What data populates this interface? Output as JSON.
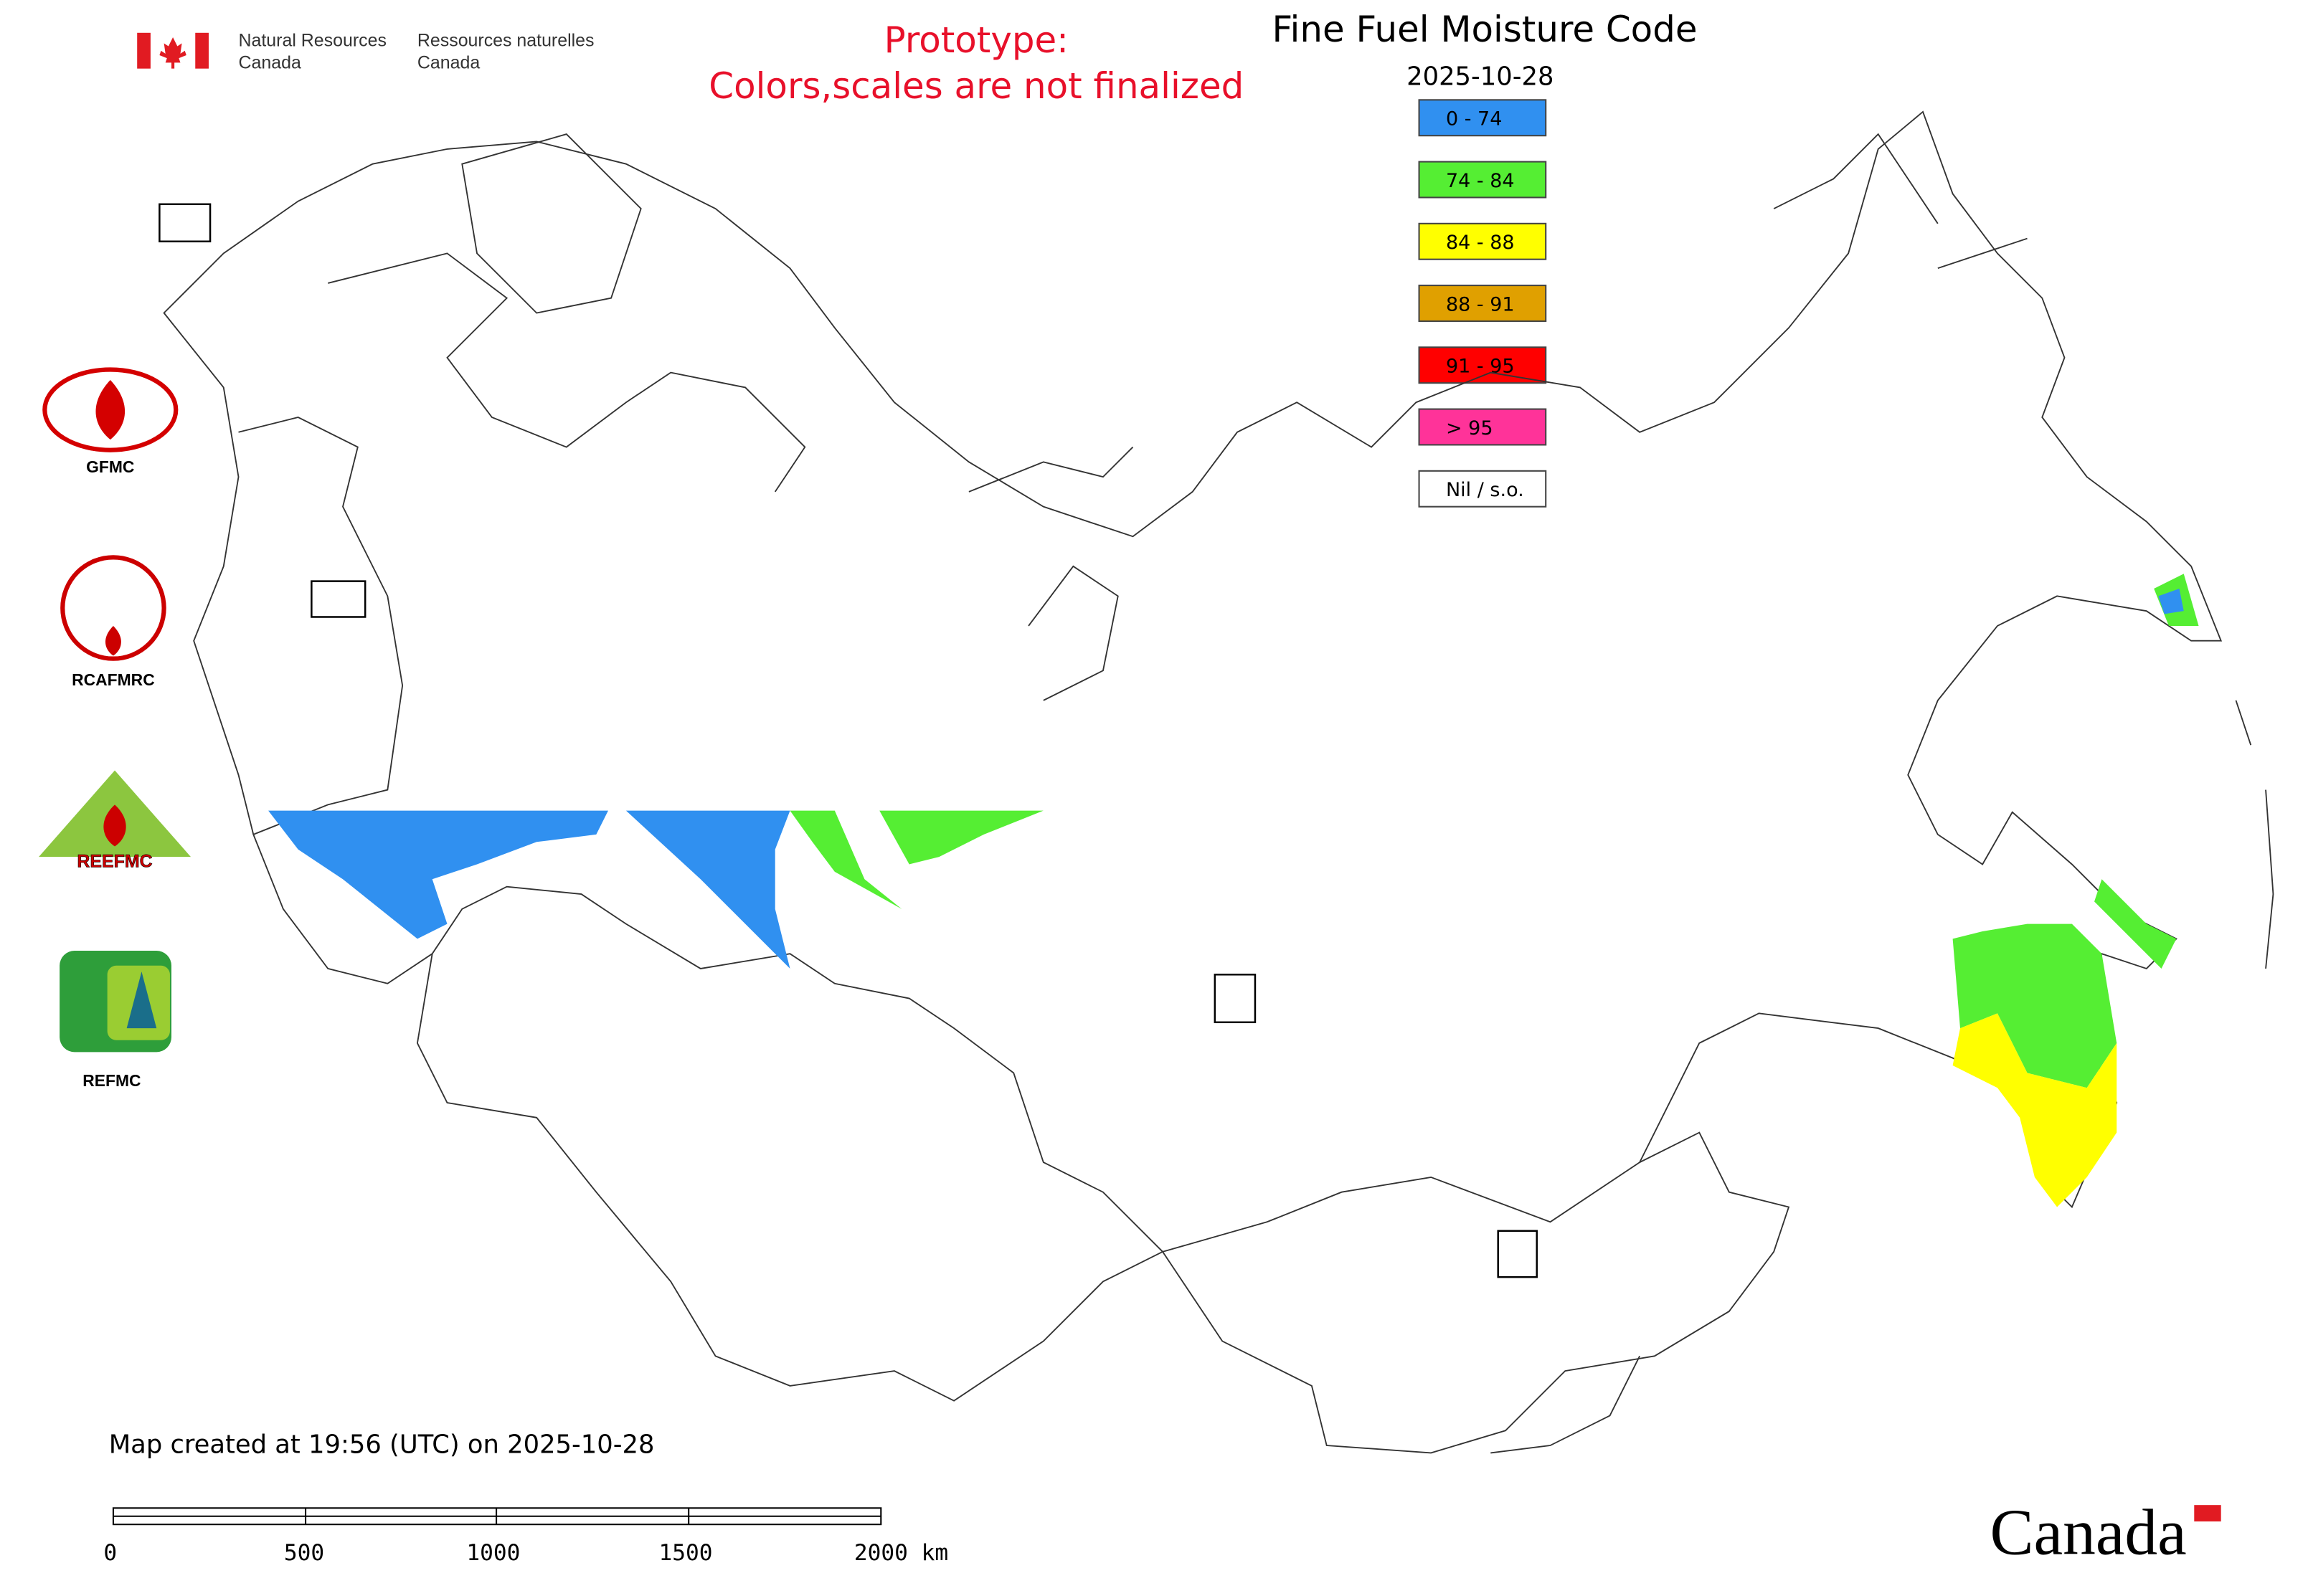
{
  "header": {
    "agency_en": [
      "Natural Resources",
      "Canada"
    ],
    "agency_fr": [
      "Ressources naturelles",
      "Canada"
    ]
  },
  "notice": [
    "Prototype:",
    "Colors,scales are not finalized"
  ],
  "title": "Fine Fuel Moisture Code",
  "date": "2025-10-28",
  "legend": [
    {
      "label": "0 - 74",
      "color": "#3090f0"
    },
    {
      "label": "74 - 84",
      "color": "#55ee33"
    },
    {
      "label": "84 - 88",
      "color": "#ffff00"
    },
    {
      "label": "88 - 91",
      "color": "#e0a000"
    },
    {
      "label": "91 - 95",
      "color": "#ff0000"
    },
    {
      "label": "> 95",
      "color": "#ff3399"
    },
    {
      "label": "Nil / s.o.",
      "color": "#ffffff"
    }
  ],
  "logos": [
    "GFMC",
    "RCAFMRC",
    "REEFMC",
    "REFMC"
  ],
  "footer": "Map created at 19:56 (UTC) on 2025-10-28",
  "scale_bar": [
    "0",
    "500",
    "1000",
    "1500",
    "2000 km"
  ],
  "wordmark": "Canada"
}
